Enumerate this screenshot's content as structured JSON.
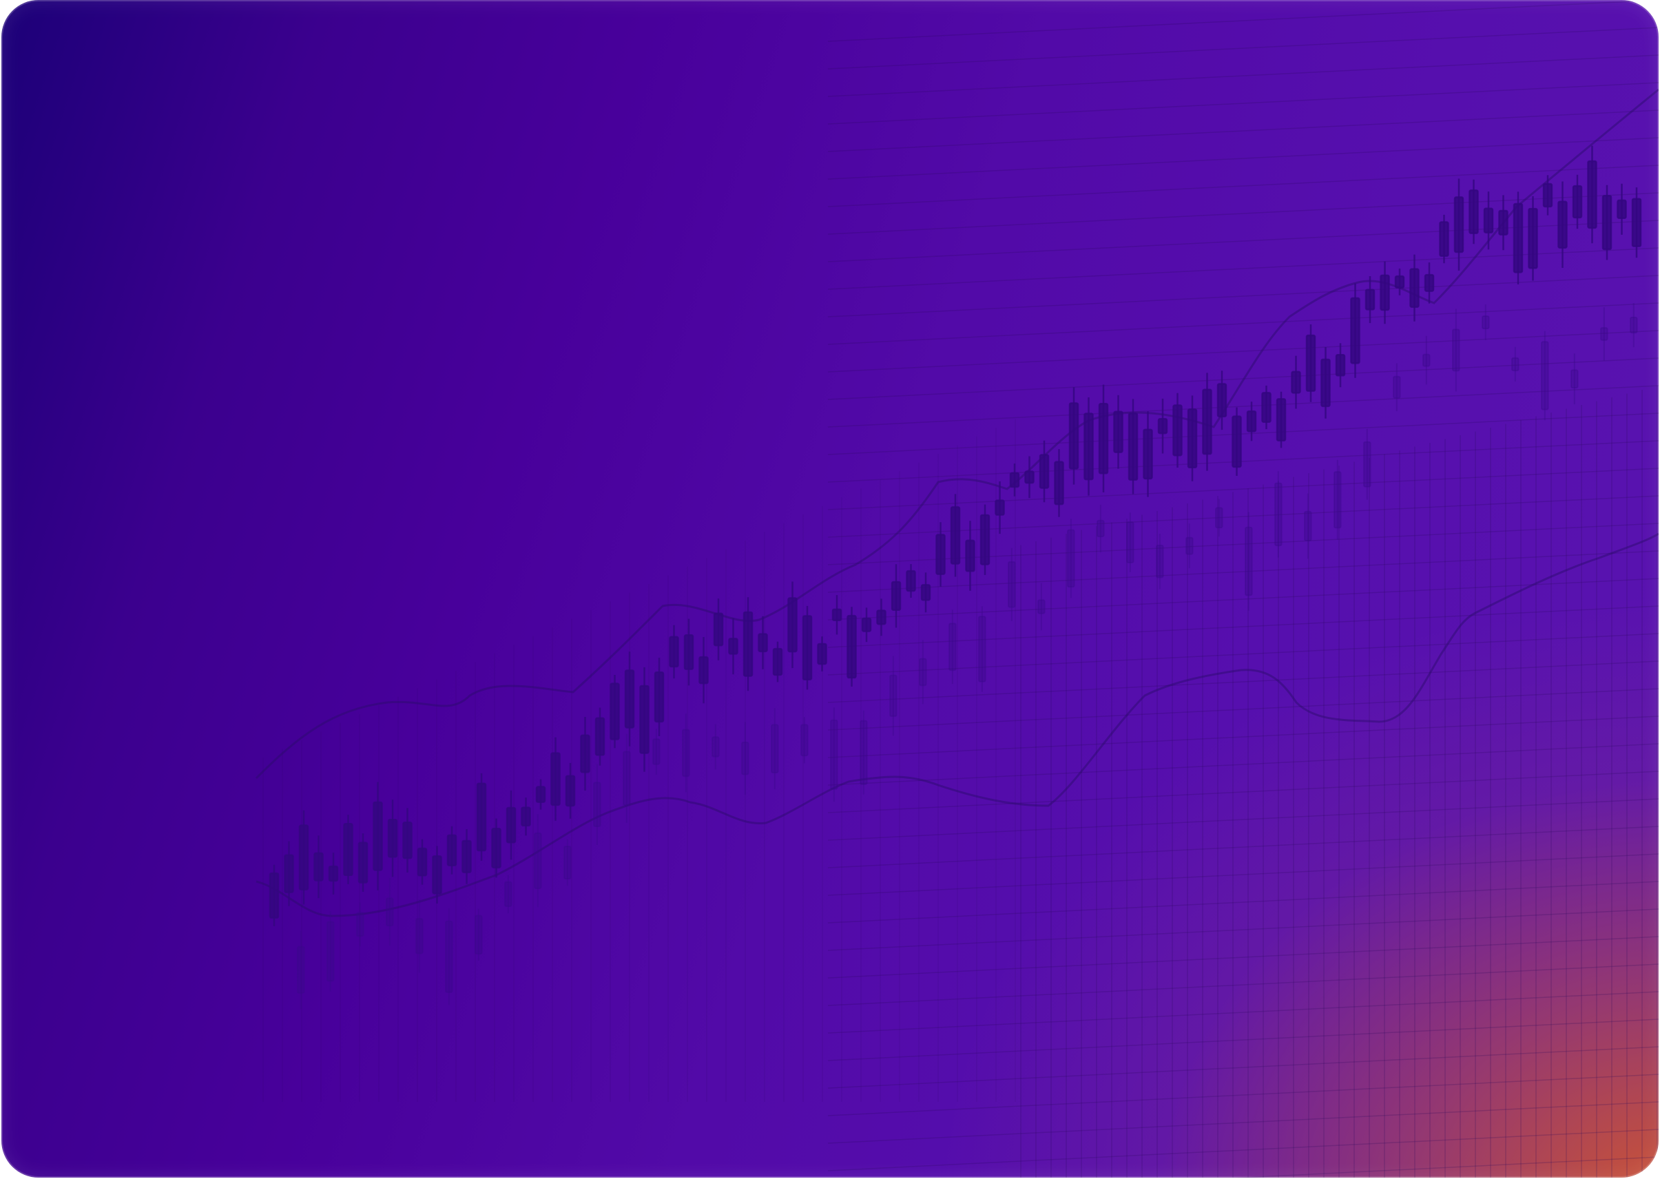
{
  "background": {
    "accent_start": "#1c0078",
    "accent_mid": "#520aa8",
    "accent_end": "#5a14b0",
    "glow": "#d65a28",
    "motif": "candlestick-chart-icon"
  }
}
